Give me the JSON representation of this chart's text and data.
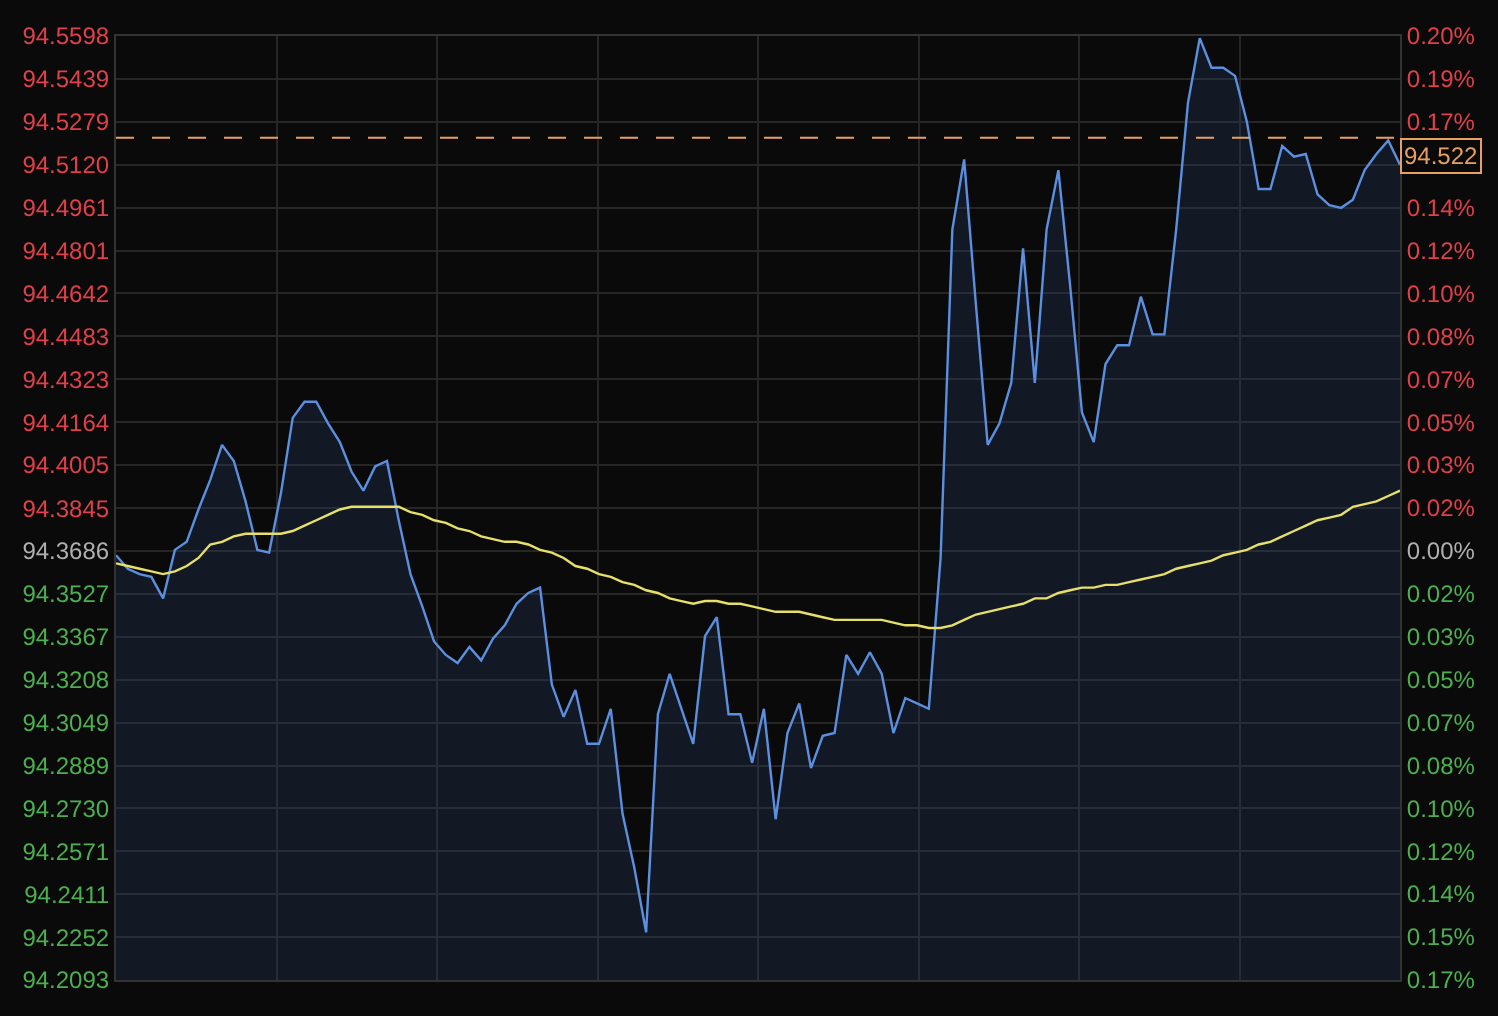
{
  "chart_data": {
    "type": "line",
    "categories": [
      null,
      null,
      null,
      null,
      null,
      null,
      null,
      null,
      null,
      null,
      null,
      null,
      null,
      null,
      null,
      null,
      null,
      null,
      null,
      null,
      null,
      null,
      null,
      null,
      null,
      null,
      null,
      null,
      null,
      null,
      null,
      null,
      null,
      null,
      null,
      null,
      null,
      null,
      null,
      null,
      null,
      null,
      null,
      null,
      null,
      null,
      null,
      null,
      null,
      null,
      null,
      null,
      null,
      null,
      null,
      null,
      null,
      null,
      null,
      null,
      null,
      null,
      null,
      null,
      null,
      null,
      null,
      null,
      null,
      null,
      null,
      null,
      null,
      null,
      null,
      null,
      null,
      null,
      null,
      null,
      null,
      null,
      null,
      null,
      null,
      null,
      null,
      null,
      null,
      null,
      null,
      null,
      null,
      null,
      null,
      null,
      null,
      null,
      null,
      null,
      null,
      null,
      null,
      null,
      null,
      null,
      null,
      null,
      null,
      null
    ],
    "series": [
      {
        "type": "area",
        "color": "#5b8fe0",
        "values": [
          94.367,
          94.362,
          94.36,
          94.359,
          94.351,
          94.369,
          94.372,
          94.384,
          94.395,
          94.408,
          94.402,
          94.387,
          94.369,
          94.368,
          94.39,
          94.418,
          94.424,
          94.424,
          94.416,
          94.409,
          94.398,
          94.391,
          94.4,
          94.402,
          94.38,
          94.36,
          94.348,
          94.335,
          94.33,
          94.327,
          94.333,
          94.328,
          94.336,
          94.341,
          94.349,
          94.353,
          94.355,
          94.319,
          94.307,
          94.317,
          94.297,
          94.297,
          94.31,
          94.271,
          94.251,
          94.227,
          94.308,
          94.323,
          94.31,
          94.297,
          94.337,
          94.344,
          94.308,
          94.308,
          94.29,
          94.31,
          94.269,
          94.301,
          94.312,
          94.288,
          94.3,
          94.301,
          94.33,
          94.323,
          94.331,
          94.323,
          94.301,
          94.314,
          94.312,
          94.31,
          94.366,
          94.488,
          94.514,
          94.46,
          94.408,
          94.416,
          94.431,
          94.481,
          94.431,
          94.488,
          94.51,
          94.467,
          94.42,
          94.409,
          94.438,
          94.445,
          94.445,
          94.463,
          94.449,
          94.449,
          94.488,
          94.535,
          94.559,
          94.548,
          94.548,
          94.545,
          94.528,
          94.503,
          94.503,
          94.519,
          94.515,
          94.516,
          94.501,
          94.497,
          94.496,
          94.499,
          94.51,
          94.516,
          94.521,
          94.512
        ]
      },
      {
        "color": "#e6df6a",
        "values": [
          94.364,
          94.363,
          94.362,
          94.361,
          94.36,
          94.361,
          94.363,
          94.366,
          94.371,
          94.372,
          94.374,
          94.375,
          94.375,
          94.375,
          94.375,
          94.376,
          94.378,
          94.38,
          94.382,
          94.384,
          94.385,
          94.385,
          94.385,
          94.385,
          94.385,
          94.383,
          94.382,
          94.38,
          94.379,
          94.377,
          94.376,
          94.374,
          94.373,
          94.372,
          94.372,
          94.371,
          94.369,
          94.368,
          94.366,
          94.363,
          94.362,
          94.36,
          94.359,
          94.357,
          94.356,
          94.354,
          94.353,
          94.351,
          94.35,
          94.349,
          94.35,
          94.35,
          94.349,
          94.349,
          94.348,
          94.347,
          94.346,
          94.346,
          94.346,
          94.345,
          94.344,
          94.343,
          94.343,
          94.343,
          94.343,
          94.343,
          94.342,
          94.341,
          94.341,
          94.34,
          94.34,
          94.341,
          94.343,
          94.345,
          94.346,
          94.347,
          94.348,
          94.349,
          94.351,
          94.351,
          94.353,
          94.354,
          94.355,
          94.355,
          94.356,
          94.356,
          94.357,
          94.358,
          94.359,
          94.36,
          94.362,
          94.363,
          94.364,
          94.365,
          94.367,
          94.368,
          94.369,
          94.371,
          94.372,
          94.374,
          94.376,
          94.378,
          94.38,
          94.381,
          94.382,
          94.385,
          94.386,
          94.387,
          94.389,
          94.391
        ]
      }
    ],
    "ylim": [
      94.2093,
      94.5598
    ],
    "yticks": [
      94.2093,
      94.2252,
      94.2411,
      94.2571,
      {
        "value": 94.273,
        "label": "94.2730"
      },
      94.2889,
      94.3049,
      94.3208,
      94.3367,
      94.3527,
      94.3686,
      94.3845,
      94.4005,
      94.4164,
      94.4323,
      94.4483,
      94.4642,
      94.4801,
      94.4961,
      {
        "value": 94.512,
        "label": "94.5120"
      },
      94.5279,
      94.5439,
      94.5598
    ],
    "y2lim": [
      -0.1688,
      0.2026
    ],
    "y2ticks": [
      {
        "value": -0.1688,
        "label": "0.17%"
      },
      {
        "value": -0.1519,
        "label": "0.15%"
      },
      {
        "value": -0.135,
        "label": "0.14%"
      },
      {
        "value": -0.1182,
        "label": "0.12%"
      },
      {
        "value": -0.1013,
        "label": "0.10%"
      },
      {
        "value": -0.0844,
        "label": "0.08%"
      },
      {
        "value": -0.0675,
        "label": "0.07%"
      },
      {
        "value": -0.0506,
        "label": "0.05%"
      },
      {
        "value": -0.0338,
        "label": "0.03%"
      },
      {
        "value": -0.0169,
        "label": "0.02%"
      },
      {
        "value": 0,
        "label": "0.00%"
      },
      {
        "value": 0.0169,
        "label": "0.02%"
      },
      {
        "value": 0.0338,
        "label": "0.03%"
      },
      {
        "value": 0.0506,
        "label": "0.05%"
      },
      {
        "value": 0.0675,
        "label": "0.07%"
      },
      {
        "value": 0.0844,
        "label": "0.08%"
      },
      {
        "value": 0.1013,
        "label": "0.10%"
      },
      {
        "value": 0.1182,
        "label": "0.12%"
      },
      {
        "value": 0.135,
        "label": "0.14%"
      },
      {
        "value": 0.1519,
        "label": null
      },
      {
        "value": 0.1688,
        "label": "0.17%"
      },
      {
        "value": 0.1857,
        "label": "0.19%"
      },
      {
        "value": 0.2026,
        "label": "0.20%"
      }
    ],
    "ref_lines": [
      {
        "axis": "y",
        "value": 94.522,
        "label": "94.522",
        "color": "#e8a060",
        "line_style": "dashed"
      }
    ],
    "grid": true,
    "legend": false
  }
}
